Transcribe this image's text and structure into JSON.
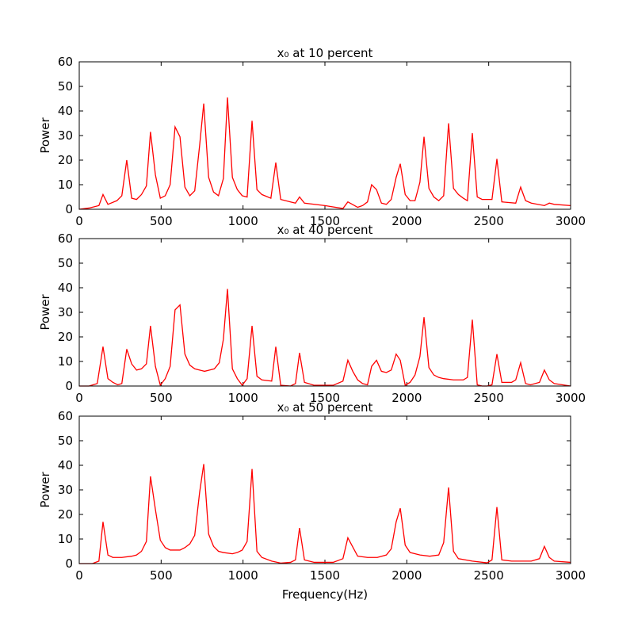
{
  "chart_data": [
    {
      "type": "line",
      "title": "x₀ at 10 percent",
      "ylabel": "Power",
      "color": "#ff0000",
      "xlim": [
        0,
        3000
      ],
      "ylim": [
        0,
        60
      ],
      "xticks": [
        0,
        500,
        1000,
        1500,
        2000,
        2500,
        3000
      ],
      "yticks": [
        0,
        10,
        20,
        30,
        40,
        50,
        60
      ],
      "x": [
        0,
        60,
        120,
        145,
        175,
        230,
        260,
        290,
        320,
        350,
        380,
        410,
        435,
        465,
        495,
        525,
        555,
        585,
        615,
        645,
        675,
        705,
        735,
        760,
        790,
        820,
        850,
        880,
        905,
        935,
        965,
        995,
        1025,
        1055,
        1085,
        1115,
        1170,
        1200,
        1230,
        1290,
        1320,
        1345,
        1375,
        1500,
        1610,
        1640,
        1700,
        1730,
        1760,
        1785,
        1815,
        1845,
        1875,
        1905,
        1935,
        1960,
        1990,
        2020,
        2050,
        2080,
        2105,
        2135,
        2165,
        2195,
        2225,
        2255,
        2285,
        2315,
        2345,
        2370,
        2400,
        2430,
        2460,
        2520,
        2550,
        2580,
        2665,
        2695,
        2725,
        2760,
        2840,
        2870,
        2900,
        3000
      ],
      "values": [
        0,
        0.5,
        1.5,
        6,
        2,
        3.5,
        5.5,
        20,
        4.5,
        4,
        6,
        9.5,
        31.5,
        14,
        4.5,
        5.5,
        10,
        33.5,
        29.5,
        9,
        5.5,
        7.5,
        26,
        43,
        13,
        7,
        5.5,
        12.5,
        45.5,
        13,
        8,
        5.5,
        5,
        36,
        8,
        6,
        4.5,
        19,
        4,
        3,
        2.5,
        5,
        2.5,
        1.5,
        0.3,
        3,
        0.8,
        1.5,
        3,
        10,
        8,
        2.5,
        2,
        4,
        13,
        18.5,
        6,
        3.5,
        3.5,
        11,
        29.5,
        8.5,
        5,
        3.5,
        5.5,
        35,
        8.5,
        6,
        4.5,
        3.5,
        31,
        5,
        4,
        4,
        20.5,
        3,
        2.5,
        9,
        3.5,
        2.5,
        1.5,
        2.5,
        2,
        1.5
      ]
    },
    {
      "type": "line",
      "title": "x₀ at 40 percent",
      "ylabel": "Power",
      "color": "#ff0000",
      "xlim": [
        0,
        3000
      ],
      "ylim": [
        0,
        60
      ],
      "xticks": [
        0,
        500,
        1000,
        1500,
        2000,
        2500,
        3000
      ],
      "yticks": [
        0,
        10,
        20,
        30,
        40,
        50,
        60
      ],
      "x": [
        0,
        60,
        110,
        145,
        175,
        205,
        235,
        260,
        290,
        320,
        350,
        380,
        410,
        435,
        465,
        495,
        525,
        555,
        585,
        615,
        645,
        675,
        705,
        735,
        765,
        795,
        825,
        855,
        880,
        905,
        935,
        965,
        995,
        1025,
        1055,
        1085,
        1115,
        1175,
        1200,
        1230,
        1290,
        1320,
        1345,
        1375,
        1435,
        1550,
        1610,
        1640,
        1670,
        1700,
        1730,
        1760,
        1785,
        1815,
        1845,
        1875,
        1905,
        1935,
        1960,
        1990,
        2020,
        2050,
        2080,
        2105,
        2135,
        2165,
        2195,
        2225,
        2285,
        2345,
        2370,
        2400,
        2430,
        2460,
        2490,
        2520,
        2550,
        2580,
        2640,
        2665,
        2695,
        2725,
        2755,
        2810,
        2840,
        2870,
        2900,
        3000
      ],
      "values": [
        0,
        0,
        1,
        16,
        3,
        1.5,
        0.5,
        1,
        15,
        9,
        6.5,
        7,
        9,
        24.5,
        8,
        0.3,
        3,
        8,
        31,
        33,
        13,
        8.5,
        7,
        6.5,
        6,
        6.5,
        7,
        9.5,
        19,
        39.5,
        7,
        3,
        0.3,
        3,
        24.5,
        4,
        2.5,
        2,
        16,
        0.3,
        0,
        1,
        13.5,
        1.5,
        0.3,
        0.3,
        2,
        10.5,
        6,
        2.5,
        1,
        0.5,
        8,
        10.5,
        6,
        5.5,
        6.5,
        13,
        10.5,
        0.3,
        1.5,
        4.5,
        12,
        28,
        7.5,
        4.5,
        3.5,
        3,
        2.5,
        2.5,
        3.5,
        27,
        0.5,
        0,
        0,
        0.5,
        13,
        1.5,
        1.5,
        2.5,
        9.5,
        1,
        0.5,
        1.5,
        6.5,
        2.5,
        1,
        0
      ]
    },
    {
      "type": "line",
      "title": "x₀ at 50 percent",
      "ylabel": "Power",
      "xlabel": "Frequency(Hz)",
      "color": "#ff0000",
      "xlim": [
        0,
        3000
      ],
      "ylim": [
        0,
        60
      ],
      "xticks": [
        0,
        500,
        1000,
        1500,
        2000,
        2500,
        3000
      ],
      "yticks": [
        0,
        10,
        20,
        30,
        40,
        50,
        60
      ],
      "x": [
        0,
        80,
        120,
        145,
        175,
        205,
        260,
        320,
        350,
        380,
        410,
        435,
        465,
        495,
        525,
        555,
        615,
        645,
        675,
        705,
        735,
        760,
        790,
        820,
        850,
        880,
        935,
        965,
        995,
        1025,
        1055,
        1085,
        1115,
        1175,
        1230,
        1290,
        1320,
        1345,
        1375,
        1435,
        1550,
        1610,
        1640,
        1700,
        1760,
        1820,
        1875,
        1905,
        1935,
        1960,
        1990,
        2020,
        2080,
        2140,
        2195,
        2225,
        2255,
        2285,
        2315,
        2400,
        2490,
        2520,
        2550,
        2580,
        2640,
        2760,
        2810,
        2840,
        2870,
        2900,
        3000
      ],
      "values": [
        0,
        0,
        1,
        17,
        3.5,
        2.5,
        2.5,
        3,
        3.5,
        5,
        9,
        35.5,
        22,
        9.5,
        6.5,
        5.5,
        5.5,
        6.5,
        8,
        11.5,
        29,
        40.5,
        12,
        7,
        5,
        4.5,
        4,
        4.5,
        5.5,
        9,
        38.5,
        5,
        2.5,
        1,
        0.2,
        0.5,
        1.5,
        14.5,
        1.5,
        0.5,
        0.5,
        2,
        10.5,
        3,
        2.5,
        2.5,
        3.5,
        6,
        17,
        22.5,
        7.5,
        4.5,
        3.5,
        3,
        3.5,
        8.5,
        31,
        5,
        2,
        1,
        0.3,
        1.5,
        23,
        1.5,
        1,
        1,
        2,
        7,
        2.5,
        1,
        0.5
      ]
    }
  ]
}
